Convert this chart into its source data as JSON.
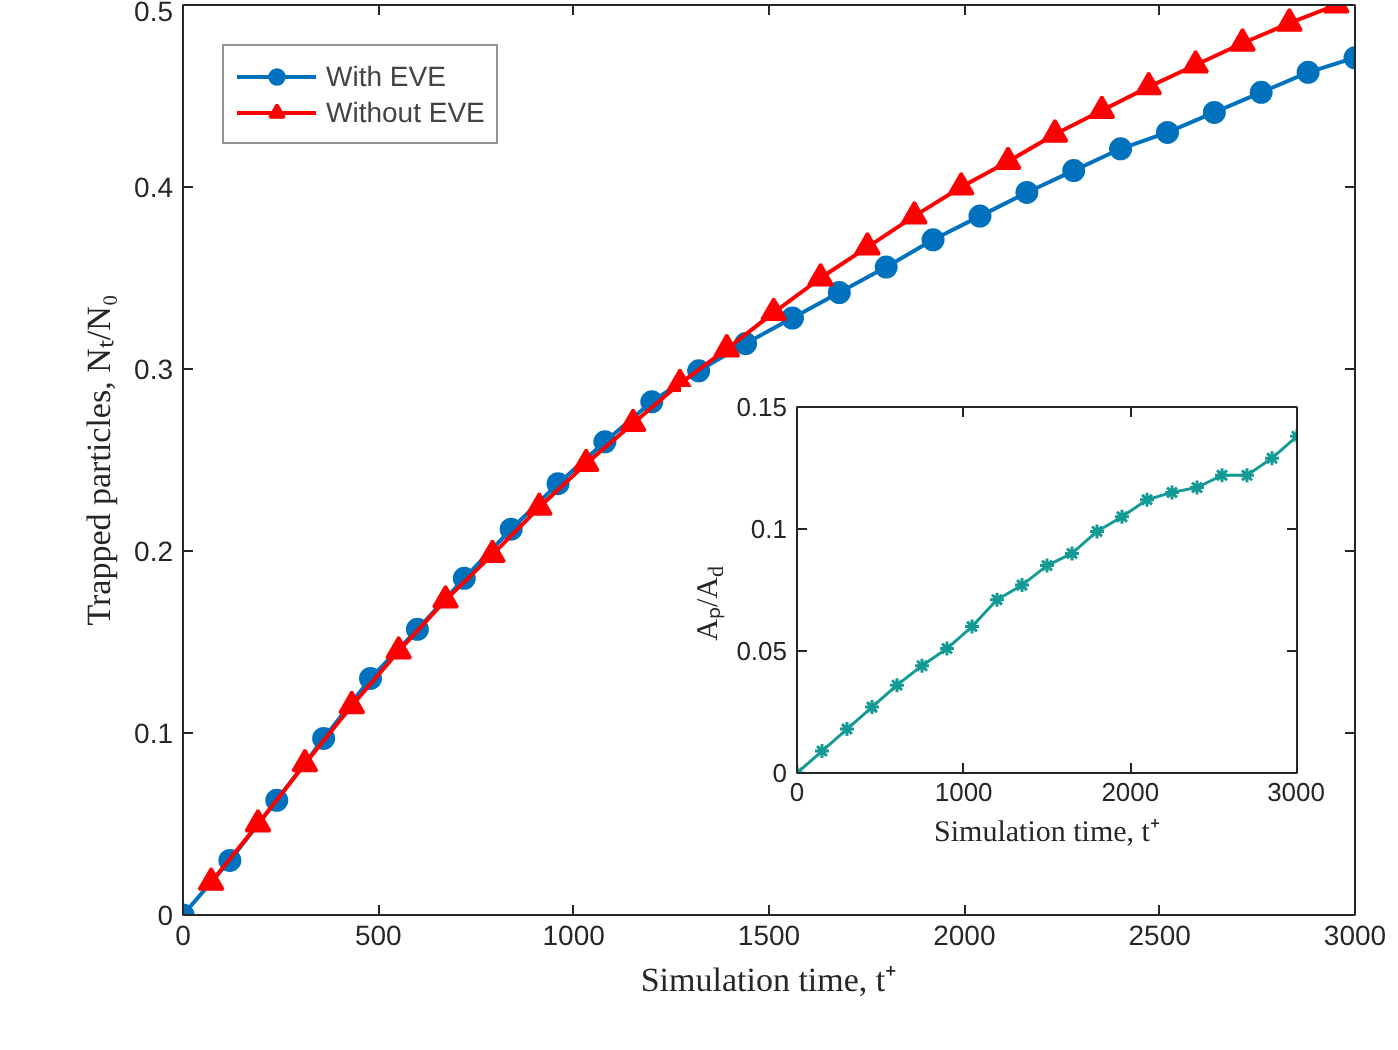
{
  "chart_data": [
    {
      "type": "line",
      "xlabel": "Simulation time, t⁺",
      "ylabel": "Trapped particles, Nₜ/N₀",
      "xlim": [
        0,
        3000
      ],
      "xticks": [
        0,
        500,
        1000,
        1500,
        2000,
        2500,
        3000
      ],
      "ylim": [
        0,
        0.5
      ],
      "yticks": [
        0,
        0.1,
        0.2,
        0.3,
        0.4,
        0.5
      ],
      "grid": false,
      "legend": "top left",
      "line_style": "solid",
      "series": [
        {
          "name": "With EVE",
          "color": "#0072bd",
          "marker": "circle",
          "x": [
            0,
            120,
            240,
            360,
            480,
            600,
            720,
            840,
            960,
            1080,
            1200,
            1320,
            1440,
            1560,
            1680,
            1800,
            1920,
            2040,
            2160,
            2280,
            2400,
            2520,
            2640,
            2760,
            2880,
            3000
          ],
          "values": [
            0,
            0.03,
            0.063,
            0.097,
            0.13,
            0.157,
            0.185,
            0.212,
            0.237,
            0.26,
            0.282,
            0.299,
            0.314,
            0.328,
            0.342,
            0.356,
            0.371,
            0.384,
            0.397,
            0.409,
            0.421,
            0.43,
            0.441,
            0.452,
            0.463,
            0.471
          ]
        },
        {
          "name": "Without EVE",
          "color": "#ff0000",
          "marker": "triangle",
          "x": [
            72,
            192,
            312,
            432,
            552,
            672,
            792,
            912,
            1032,
            1152,
            1272,
            1392,
            1512,
            1632,
            1752,
            1872,
            1992,
            2112,
            2232,
            2352,
            2472,
            2592,
            2712,
            2832,
            2952
          ],
          "values": [
            0.018,
            0.05,
            0.083,
            0.115,
            0.145,
            0.173,
            0.198,
            0.224,
            0.248,
            0.27,
            0.292,
            0.311,
            0.331,
            0.35,
            0.367,
            0.384,
            0.4,
            0.414,
            0.429,
            0.442,
            0.455,
            0.467,
            0.479,
            0.49,
            0.5
          ]
        }
      ]
    },
    {
      "type": "line",
      "xlabel": "Simulation time, t⁺",
      "ylabel": "Aₚ/A$_{d}$",
      "xlim": [
        0,
        3000
      ],
      "xticks": [
        0,
        1000,
        2000,
        3000
      ],
      "ylim": [
        0,
        0.15
      ],
      "yticks": [
        0,
        0.05,
        0.1,
        0.15
      ],
      "grid": false,
      "legend": false,
      "line_style": "solid",
      "series": [
        {
          "color": "#149a94",
          "marker": "cross",
          "x": [
            0,
            150,
            300,
            450,
            600,
            750,
            900,
            1050,
            1200,
            1350,
            1500,
            1650,
            1800,
            1950,
            2100,
            2250,
            2400,
            2550,
            2700,
            2850,
            3000
          ],
          "values": [
            0,
            0.009,
            0.018,
            0.027,
            0.036,
            0.044,
            0.051,
            0.06,
            0.071,
            0.077,
            0.085,
            0.09,
            0.099,
            0.105,
            0.112,
            0.115,
            0.117,
            0.122,
            0.122,
            0.129,
            0.138
          ]
        }
      ]
    }
  ]
}
